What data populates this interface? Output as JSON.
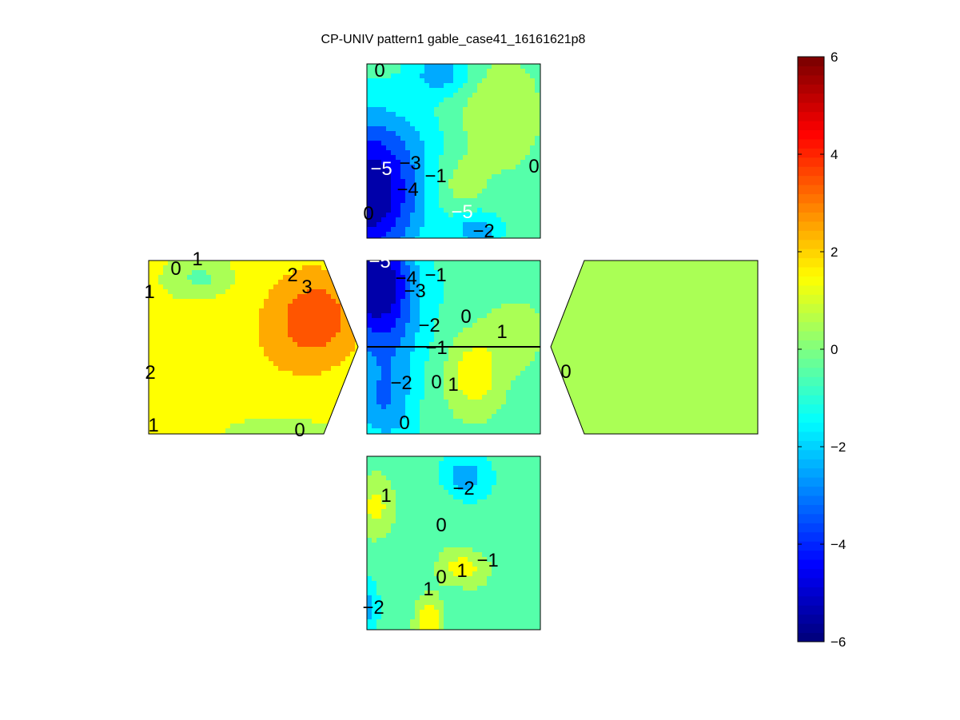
{
  "chart_data": {
    "type": "heatmap",
    "subtype": "filled-contour (unfolded building surfaces)",
    "title": "CP-UNIV pattern1 gable_case41_16161621p8",
    "colormap": "jet",
    "clim": [
      -6,
      6
    ],
    "colorbar": {
      "ticks": [
        -6,
        -4,
        -2,
        0,
        2,
        4,
        6
      ],
      "tick_labels": [
        "−6",
        "−4",
        "−2",
        "0",
        "2",
        "4",
        "6"
      ]
    },
    "panels": [
      {
        "name": "top",
        "contour_labels": [
          "0",
          "−5",
          "−3",
          "−1",
          "−4",
          "0",
          "−5",
          "0",
          "−2"
        ],
        "blobs": [
          {
            "x": 0.02,
            "y": 0.72,
            "value": -6.0,
            "sx": 0.2,
            "sy": 0.3
          },
          {
            "x": 0.42,
            "y": 0.05,
            "value": -2.6,
            "sx": 0.12,
            "sy": 0.09
          },
          {
            "x": 0.62,
            "y": 0.94,
            "value": -2.6,
            "sx": 0.1,
            "sy": 0.08
          },
          {
            "x": 0.74,
            "y": 0.28,
            "value": 0.8,
            "sx": 0.16,
            "sy": 0.22
          },
          {
            "x": 0.52,
            "y": 0.68,
            "value": 0.6,
            "sx": 0.09,
            "sy": 0.1
          },
          {
            "x": 0.35,
            "y": 0.4,
            "value": -0.8,
            "sx": 0.12,
            "sy": 0.14
          }
        ],
        "base": -0.4
      },
      {
        "name": "left",
        "contour_labels": [
          "0",
          "1",
          "1",
          "2",
          "3",
          "2",
          "1",
          "0"
        ],
        "blobs": [
          {
            "x": 0.8,
            "y": 0.32,
            "value": 3.4,
            "sx": 0.14,
            "sy": 0.18
          },
          {
            "x": 0.62,
            "y": 0.45,
            "value": 1.8,
            "sx": 0.22,
            "sy": 0.3
          },
          {
            "x": 0.18,
            "y": 0.78,
            "value": 1.6,
            "sx": 0.18,
            "sy": 0.12
          },
          {
            "x": 0.25,
            "y": 0.1,
            "value": -0.3,
            "sx": 0.1,
            "sy": 0.07
          },
          {
            "x": 0.6,
            "y": 0.96,
            "value": 0.3,
            "sx": 0.18,
            "sy": 0.06
          }
        ],
        "base": 1.2
      },
      {
        "name": "center",
        "contour_labels": [
          "−5",
          "−4",
          "−1",
          "−3",
          "−2",
          "0",
          "1",
          "−1",
          "−2",
          "0",
          "1",
          "0"
        ],
        "blobs": [
          {
            "x": 0.02,
            "y": 0.08,
            "value": -5.8,
            "sx": 0.16,
            "sy": 0.18
          },
          {
            "x": 0.1,
            "y": 0.4,
            "value": -3.0,
            "sx": 0.16,
            "sy": 0.22
          },
          {
            "x": 0.1,
            "y": 0.82,
            "value": -2.6,
            "sx": 0.12,
            "sy": 0.16
          },
          {
            "x": 0.6,
            "y": 0.65,
            "value": 1.8,
            "sx": 0.1,
            "sy": 0.14
          },
          {
            "x": 0.8,
            "y": 0.4,
            "value": 0.7,
            "sx": 0.12,
            "sy": 0.14
          },
          {
            "x": 0.6,
            "y": 0.15,
            "value": -1.0,
            "sx": 0.15,
            "sy": 0.12
          },
          {
            "x": 0.25,
            "y": 0.97,
            "value": -0.6,
            "sx": 0.08,
            "sy": 0.06
          }
        ],
        "base": -0.3
      },
      {
        "name": "right",
        "contour_labels": [
          "0"
        ],
        "blobs": [
          {
            "x": 0.35,
            "y": 0.85,
            "value": 0.5,
            "sx": 0.4,
            "sy": 0.3
          }
        ],
        "base": 0.05
      },
      {
        "name": "bottom",
        "contour_labels": [
          "1",
          "−2",
          "0",
          "−1",
          "1",
          "0",
          "1",
          "−2"
        ],
        "blobs": [
          {
            "x": 0.35,
            "y": 0.95,
            "value": 2.0,
            "sx": 0.06,
            "sy": 0.12
          },
          {
            "x": 0.05,
            "y": 0.28,
            "value": 1.3,
            "sx": 0.08,
            "sy": 0.14
          },
          {
            "x": 0.55,
            "y": 0.12,
            "value": -2.8,
            "sx": 0.08,
            "sy": 0.08
          },
          {
            "x": 0.01,
            "y": 0.85,
            "value": -2.6,
            "sx": 0.03,
            "sy": 0.08
          },
          {
            "x": 0.5,
            "y": 0.62,
            "value": 0.9,
            "sx": 0.09,
            "sy": 0.08
          },
          {
            "x": 0.62,
            "y": 0.65,
            "value": 0.3,
            "sx": 0.08,
            "sy": 0.08
          },
          {
            "x": 0.42,
            "y": 0.3,
            "value": -0.3,
            "sx": 0.12,
            "sy": 0.12
          }
        ],
        "base": -0.8
      }
    ]
  }
}
